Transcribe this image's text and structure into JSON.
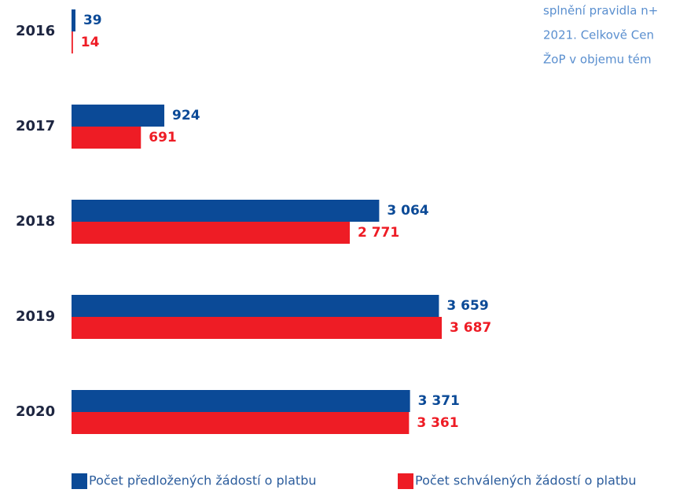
{
  "chart_data": {
    "type": "bar",
    "orientation": "horizontal",
    "categories": [
      "2016",
      "2017",
      "2018",
      "2019",
      "2020"
    ],
    "series": [
      {
        "name": "Počet předložených žádostí o platbu",
        "color": "#0b4a97",
        "values": [
          39,
          924,
          3064,
          3659,
          3371
        ],
        "value_labels": [
          "39",
          "924",
          "3 064",
          "3 659",
          "3 371"
        ]
      },
      {
        "name": "Počet schválených žádostí o platbu",
        "color": "#ee1c25",
        "values": [
          14,
          691,
          2771,
          3687,
          3361
        ],
        "value_labels": [
          "14",
          "691",
          "2 771",
          "3 687",
          "3 361"
        ]
      }
    ],
    "annotations": [
      "splnění pravidla n+",
      "2021. Celkově Cen",
      "ŽoP v objemu tém"
    ]
  }
}
